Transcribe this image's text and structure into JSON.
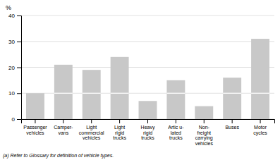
{
  "chart_data": {
    "type": "bar",
    "categories": [
      "Passenger\nvehicles",
      "Camper-\nvans",
      "Light\ncommercial\nvehicles",
      "Light\nrigid\ntrucks",
      "Heavy\nrigid\ntrucks",
      "Artic u-\nlated\ntrucks",
      "Non-\nfreight\ncarrying\nvehicles",
      "Buses",
      "Motor\ncycles"
    ],
    "series": [
      {
        "color": "#c8c8c8",
        "values": [
          10,
          10,
          10,
          10,
          7,
          10,
          5,
          10,
          10
        ]
      },
      {
        "color": "#c8c8c8",
        "values": [
          0,
          11,
          9,
          14,
          0,
          5,
          0,
          6,
          21
        ]
      }
    ],
    "stacked": true,
    "ylabel": "%",
    "ylim": [
      0,
      40
    ],
    "yticks": [
      0,
      10,
      20,
      30,
      40
    ],
    "grid": true,
    "footnote": "(a) Refer to Glossary for definition of vehicle types."
  }
}
